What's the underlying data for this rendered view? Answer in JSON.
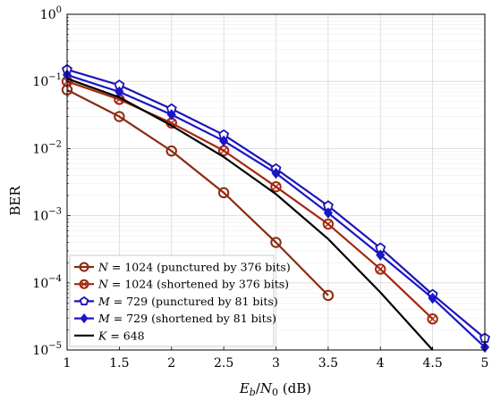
{
  "chart_data": {
    "type": "line",
    "xlabel": "E_b/N_0 (dB)",
    "xlabel_parts": {
      "E": "E",
      "b": "b",
      "sep": "/",
      "N": "N",
      "zero": "0",
      "unit": " (dB)"
    },
    "ylabel": "BER",
    "xlim": [
      1,
      5
    ],
    "ylim": [
      1e-05,
      1
    ],
    "y_scale": "log",
    "x_ticks": [
      "1",
      "1.5",
      "2",
      "2.5",
      "3",
      "3.5",
      "4",
      "4.5",
      "5"
    ],
    "y_ticks": [
      {
        "base": "10",
        "exp": "0"
      },
      {
        "base": "10",
        "exp": "−1"
      },
      {
        "base": "10",
        "exp": "−2"
      },
      {
        "base": "10",
        "exp": "−3"
      },
      {
        "base": "10",
        "exp": "−4"
      },
      {
        "base": "10",
        "exp": "−5"
      }
    ],
    "grid": true,
    "legend_position": "bottom-left",
    "series": [
      {
        "name": "N = 1024 (punctured by 376 bits)",
        "legend": {
          "var": "N",
          "rest": " = 1024 (punctured by 376 bits)"
        },
        "color": "#8b2a0f",
        "marker": "circle",
        "x": [
          1,
          1.5,
          2,
          2.5,
          3,
          3.5
        ],
        "y": [
          0.075,
          0.03,
          0.0092,
          0.0022,
          0.0004,
          6.5e-05
        ]
      },
      {
        "name": "N = 1024 (shortened by 376 bits)",
        "legend": {
          "var": "N",
          "rest": " = 1024 (shortened by 376 bits)"
        },
        "color": "#a32810",
        "marker": "circle-cross",
        "x": [
          1,
          1.5,
          2,
          2.5,
          3,
          3.5,
          4,
          4.5
        ],
        "y": [
          0.1,
          0.054,
          0.024,
          0.0093,
          0.0027,
          0.00075,
          0.00016,
          2.9e-05
        ]
      },
      {
        "name": "M = 729 (punctured by 81 bits)",
        "legend": {
          "var": "M",
          "rest": " = 729 (punctured by 81 bits)"
        },
        "color": "#1c14b8",
        "marker": "pentagon",
        "x": [
          1,
          1.5,
          2,
          2.5,
          3,
          3.5,
          4,
          4.5,
          5
        ],
        "y": [
          0.15,
          0.088,
          0.039,
          0.016,
          0.005,
          0.0014,
          0.00033,
          6.7e-05,
          1.5e-05
        ]
      },
      {
        "name": "M = 729 (shortened by 81 bits)",
        "legend": {
          "var": "M",
          "rest": " = 729 (shortened by 81 bits)"
        },
        "color": "#1a16c8",
        "marker": "diamond",
        "x": [
          1,
          1.5,
          2,
          2.5,
          3,
          3.5,
          4,
          4.5,
          5
        ],
        "y": [
          0.125,
          0.07,
          0.032,
          0.013,
          0.0043,
          0.0011,
          0.00026,
          5.9e-05,
          1.1e-05
        ]
      },
      {
        "name": "K = 648",
        "legend": {
          "var": "K",
          "rest": " = 648"
        },
        "color": "#000000",
        "marker": "none",
        "x": [
          1,
          1.5,
          2,
          2.5,
          3,
          3.5,
          4,
          4.5
        ],
        "y": [
          0.11,
          0.058,
          0.022,
          0.0075,
          0.0021,
          0.00045,
          7.2e-05,
          1e-05
        ]
      }
    ]
  }
}
